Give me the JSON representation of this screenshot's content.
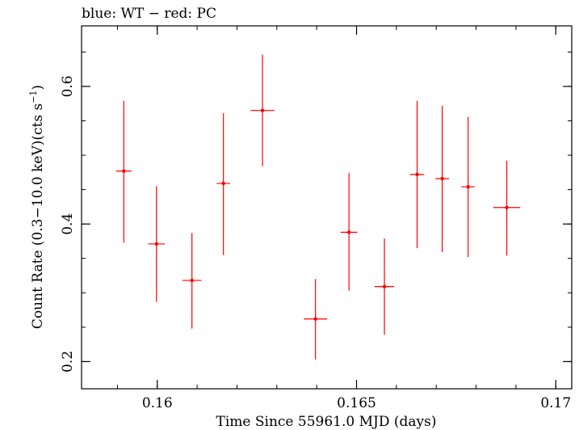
{
  "chart_data": {
    "type": "scatter",
    "title": "blue: WT − red: PC",
    "xlabel": "Time Since 55961.0 MJD (days)",
    "ylabel_main": "Count Rate (0.3−10.0 keV)(cts s",
    "ylabel_sup": "−1",
    "ylabel_end": ")",
    "xlim": [
      0.1581,
      0.1704
    ],
    "ylim": [
      0.1605,
      0.688
    ],
    "x_ticks": [
      0.16,
      0.165,
      0.17
    ],
    "x_tick_labels": [
      "0.16",
      "0.165",
      "0.17"
    ],
    "y_ticks": [
      0.2,
      0.4,
      0.6
    ],
    "y_tick_labels": [
      "0.2",
      "0.4",
      "0.6"
    ],
    "grid": false,
    "series": [
      {
        "color": "#ff0000",
        "points": [
          {
            "x": 0.15916,
            "y": 0.477,
            "xerr": 0.00019,
            "ylo": 0.373,
            "yhi": 0.579
          },
          {
            "x": 0.15998,
            "y": 0.371,
            "xerr": 0.00021,
            "ylo": 0.287,
            "yhi": 0.455
          },
          {
            "x": 0.16087,
            "y": 0.318,
            "xerr": 0.00024,
            "ylo": 0.248,
            "yhi": 0.387
          },
          {
            "x": 0.16166,
            "y": 0.459,
            "xerr": 0.00017,
            "ylo": 0.355,
            "yhi": 0.561
          },
          {
            "x": 0.16264,
            "y": 0.565,
            "xerr": 0.0003,
            "ylo": 0.484,
            "yhi": 0.646
          },
          {
            "x": 0.16397,
            "y": 0.262,
            "xerr": 0.00029,
            "ylo": 0.203,
            "yhi": 0.32
          },
          {
            "x": 0.16481,
            "y": 0.388,
            "xerr": 0.00021,
            "ylo": 0.303,
            "yhi": 0.474
          },
          {
            "x": 0.1657,
            "y": 0.309,
            "xerr": 0.00025,
            "ylo": 0.239,
            "yhi": 0.379
          },
          {
            "x": 0.16652,
            "y": 0.472,
            "xerr": 0.00018,
            "ylo": 0.365,
            "yhi": 0.579
          },
          {
            "x": 0.16715,
            "y": 0.466,
            "xerr": 0.00017,
            "ylo": 0.359,
            "yhi": 0.572
          },
          {
            "x": 0.1678,
            "y": 0.454,
            "xerr": 0.00017,
            "ylo": 0.352,
            "yhi": 0.556
          },
          {
            "x": 0.16877,
            "y": 0.424,
            "xerr": 0.00034,
            "ylo": 0.354,
            "yhi": 0.492
          }
        ]
      }
    ]
  }
}
